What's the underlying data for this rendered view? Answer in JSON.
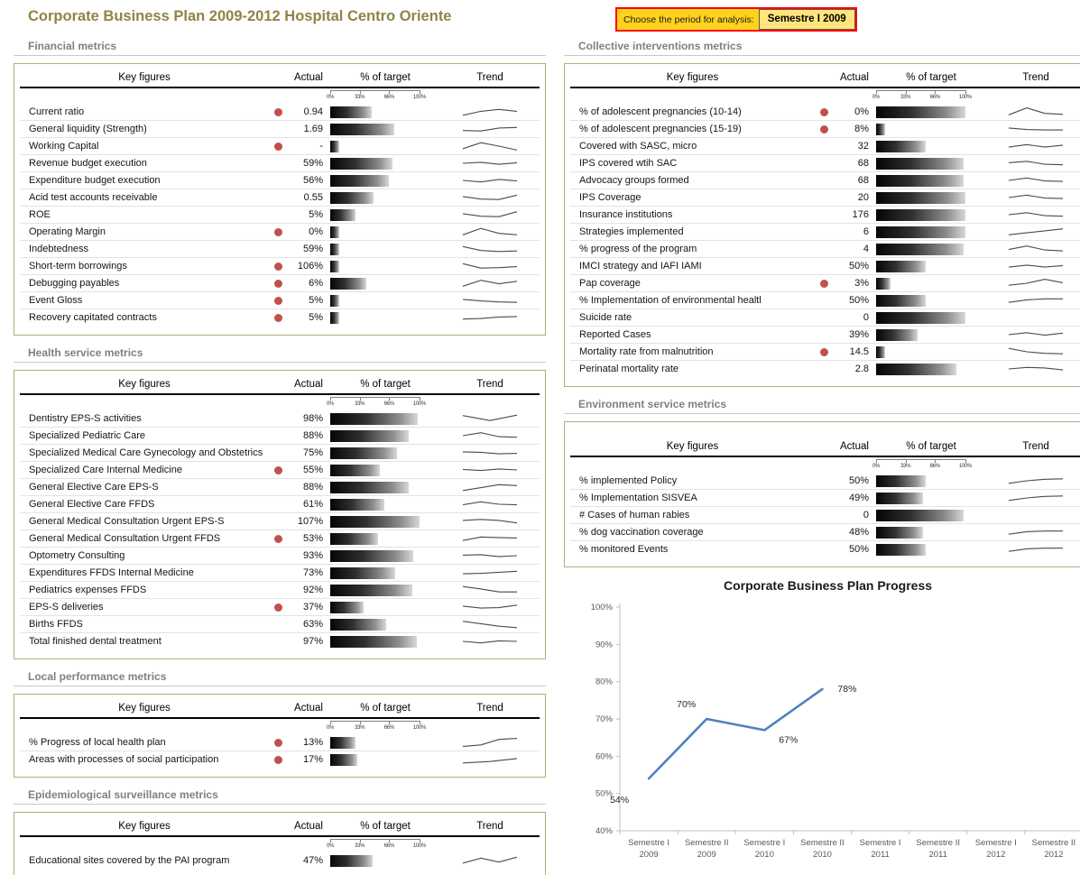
{
  "header": {
    "title": "Corporate Business Plan 2009-2012 Hospital Centro Oriente",
    "period_label": "Choose the period for analysis:",
    "period_value": "Semestre I 2009"
  },
  "table_headers": {
    "key_figures": "Key figures",
    "actual": "Actual",
    "target": "% of target",
    "trend": "Trend"
  },
  "scale_labels": [
    "0%",
    "33%",
    "66%",
    "100%"
  ],
  "colors": {
    "page_title": "#8e8444",
    "section_title": "#808080",
    "panel_border": "#b5ab7a",
    "alert_dot": "#c0504d",
    "chart_line": "#4f81bd",
    "period_box_bg": "#ffd21e",
    "period_box_border": "#ff0000",
    "period_value_bg": "#ffe57c"
  },
  "panels": [
    {
      "id": "financial",
      "column": "left",
      "title": "Financial metrics",
      "rows": [
        {
          "label": "Current ratio",
          "alert": true,
          "actual": "0.94",
          "target_pct": 46,
          "trend": [
            0.15,
            0.55,
            0.75,
            0.55
          ]
        },
        {
          "label": "General liquidity (Strength)",
          "alert": false,
          "actual": "1.69",
          "target_pct": 72,
          "trend": [
            0.35,
            0.3,
            0.6,
            0.65
          ]
        },
        {
          "label": "Working Capital",
          "alert": true,
          "actual": "-",
          "target_pct": 10,
          "trend": [
            0.25,
            0.85,
            0.5,
            0.1
          ]
        },
        {
          "label": "Revenue budget execution",
          "alert": false,
          "actual": "59%",
          "target_pct": 70,
          "trend": [
            0.5,
            0.6,
            0.4,
            0.55
          ]
        },
        {
          "label": "Expenditure budget execution",
          "alert": false,
          "actual": "56%",
          "target_pct": 66,
          "trend": [
            0.5,
            0.35,
            0.6,
            0.45
          ]
        },
        {
          "label": "Acid test accounts receivable",
          "alert": false,
          "actual": "0.55",
          "target_pct": 48,
          "trend": [
            0.6,
            0.35,
            0.3,
            0.75
          ]
        },
        {
          "label": "ROE",
          "alert": false,
          "actual": "5%",
          "target_pct": 28,
          "trend": [
            0.6,
            0.35,
            0.3,
            0.8
          ]
        },
        {
          "label": "Operating Margin",
          "alert": true,
          "actual": "0%",
          "target_pct": 10,
          "trend": [
            0.2,
            0.85,
            0.35,
            0.2
          ]
        },
        {
          "label": "Indebtedness",
          "alert": false,
          "actual": "59%",
          "target_pct": 10,
          "trend": [
            0.75,
            0.35,
            0.25,
            0.3
          ]
        },
        {
          "label": "Short-term borrowings",
          "alert": true,
          "actual": "106%",
          "target_pct": 10,
          "trend": [
            0.75,
            0.3,
            0.35,
            0.45
          ]
        },
        {
          "label": "Debugging payables",
          "alert": true,
          "actual": "6%",
          "target_pct": 40,
          "trend": [
            0.2,
            0.8,
            0.45,
            0.7
          ]
        },
        {
          "label": "Event Gloss",
          "alert": true,
          "actual": "5%",
          "target_pct": 10,
          "trend": [
            0.6,
            0.45,
            0.35,
            0.3
          ]
        },
        {
          "label": "Recovery capitated contracts",
          "alert": true,
          "actual": "5%",
          "target_pct": 10,
          "trend": [
            0.35,
            0.4,
            0.55,
            0.6
          ]
        }
      ]
    },
    {
      "id": "health",
      "column": "left",
      "title": "Health service metrics",
      "rows": [
        {
          "label": "Dentistry EPS-S activities",
          "alert": false,
          "actual": "98%",
          "target_pct": 98,
          "trend": [
            0.8,
            0.3,
            0.85
          ]
        },
        {
          "label": "Specialized Pediatric Care",
          "alert": false,
          "actual": "88%",
          "target_pct": 88,
          "trend": [
            0.5,
            0.8,
            0.4,
            0.35
          ]
        },
        {
          "label": "Specialized Medical Care Gynecology and Obstetrics",
          "alert": false,
          "actual": "75%",
          "target_pct": 75,
          "trend": [
            0.6,
            0.55,
            0.4,
            0.45
          ]
        },
        {
          "label": "Specialized Care Internal Medicine",
          "alert": true,
          "actual": "55%",
          "target_pct": 55,
          "trend": [
            0.55,
            0.45,
            0.6,
            0.5
          ]
        },
        {
          "label": "General Elective Care EPS-S",
          "alert": false,
          "actual": "88%",
          "target_pct": 88,
          "trend": [
            0.15,
            0.45,
            0.75,
            0.65
          ]
        },
        {
          "label": "General Elective Care FFDS",
          "alert": false,
          "actual": "61%",
          "target_pct": 61,
          "trend": [
            0.45,
            0.75,
            0.5,
            0.45
          ]
        },
        {
          "label": "General Medical Consultation Urgent EPS-S",
          "alert": false,
          "actual": "107%",
          "target_pct": 100,
          "trend": [
            0.6,
            0.7,
            0.6,
            0.35
          ]
        },
        {
          "label": "General Medical Consultation Urgent FFDS",
          "alert": true,
          "actual": "53%",
          "target_pct": 53,
          "trend": [
            0.3,
            0.65,
            0.6,
            0.55
          ]
        },
        {
          "label": "Optometry Consulting",
          "alert": false,
          "actual": "93%",
          "target_pct": 93,
          "trend": [
            0.55,
            0.6,
            0.4,
            0.5
          ]
        },
        {
          "label": "Expenditures FFDS Internal Medicine",
          "alert": false,
          "actual": "73%",
          "target_pct": 73,
          "trend": [
            0.4,
            0.45,
            0.55,
            0.65
          ]
        },
        {
          "label": "Pediatrics expenses FFDS",
          "alert": false,
          "actual": "92%",
          "target_pct": 92,
          "trend": [
            0.85,
            0.6,
            0.3,
            0.3
          ]
        },
        {
          "label": "EPS-S deliveries",
          "alert": true,
          "actual": "37%",
          "target_pct": 37,
          "trend": [
            0.6,
            0.4,
            0.45,
            0.7
          ]
        },
        {
          "label": "Births FFDS",
          "alert": false,
          "actual": "63%",
          "target_pct": 63,
          "trend": [
            0.8,
            0.55,
            0.3,
            0.15
          ]
        },
        {
          "label": "Total finished dental treatment",
          "alert": false,
          "actual": "97%",
          "target_pct": 97,
          "trend": [
            0.5,
            0.35,
            0.55,
            0.5
          ]
        }
      ]
    },
    {
      "id": "local",
      "column": "left",
      "title": "Local performance metrics",
      "rows": [
        {
          "label": "% Progress of local health plan",
          "alert": true,
          "actual": "13%",
          "target_pct": 28,
          "trend": [
            0.1,
            0.25,
            0.8,
            0.9
          ]
        },
        {
          "label": "Areas with processes of social participation",
          "alert": true,
          "actual": "17%",
          "target_pct": 30,
          "trend": [
            0.15,
            0.3,
            0.6
          ]
        }
      ]
    },
    {
      "id": "epidemiological",
      "column": "left",
      "title": "Epidemiological surveillance metrics",
      "rows": [
        {
          "label": "Educational sites covered by the PAI program",
          "alert": false,
          "actual": "47%",
          "target_pct": 47,
          "trend": [
            0.25,
            0.75,
            0.35,
            0.85
          ]
        }
      ]
    },
    {
      "id": "collective",
      "column": "right",
      "title": "Collective interventions metrics",
      "rows": [
        {
          "label": "% of adolescent pregnancies (10-14)",
          "alert": true,
          "actual": "0%",
          "target_pct": 100,
          "trend": [
            0.2,
            0.9,
            0.35,
            0.25
          ]
        },
        {
          "label": "% of adolescent pregnancies (15-19)",
          "alert": true,
          "actual": "8%",
          "target_pct": 10,
          "trend": [
            0.6,
            0.45,
            0.4,
            0.4
          ]
        },
        {
          "label": "Covered with SASC, micro",
          "alert": false,
          "actual": "32",
          "target_pct": 56,
          "trend": [
            0.4,
            0.65,
            0.4,
            0.6
          ]
        },
        {
          "label": "IPS covered wtih SAC",
          "alert": false,
          "actual": "68",
          "target_pct": 98,
          "trend": [
            0.55,
            0.7,
            0.4,
            0.35
          ]
        },
        {
          "label": "Advocacy groups formed",
          "alert": false,
          "actual": "68",
          "target_pct": 98,
          "trend": [
            0.5,
            0.75,
            0.45,
            0.4
          ]
        },
        {
          "label": "IPS Coverage",
          "alert": false,
          "actual": "20",
          "target_pct": 100,
          "trend": [
            0.5,
            0.75,
            0.45,
            0.4
          ]
        },
        {
          "label": "Insurance institutions",
          "alert": false,
          "actual": "176",
          "target_pct": 100,
          "trend": [
            0.5,
            0.7,
            0.4,
            0.35
          ]
        },
        {
          "label": "Strategies implemented",
          "alert": false,
          "actual": "6",
          "target_pct": 100,
          "trend": [
            0.2,
            0.4,
            0.6,
            0.8
          ]
        },
        {
          "label": "% progress of the program",
          "alert": false,
          "actual": "4",
          "target_pct": 98,
          "trend": [
            0.45,
            0.8,
            0.4,
            0.3
          ]
        },
        {
          "label": "IMCI strategy and IAFI IAMI",
          "alert": false,
          "actual": "50%",
          "target_pct": 56,
          "trend": [
            0.4,
            0.6,
            0.4,
            0.55
          ]
        },
        {
          "label": "Pap coverage",
          "alert": true,
          "actual": "3%",
          "target_pct": 16,
          "trend": [
            0.3,
            0.5,
            0.9,
            0.55
          ]
        },
        {
          "label": "% Implementation of environmental healtl",
          "alert": false,
          "actual": "50%",
          "target_pct": 56,
          "trend": [
            0.3,
            0.55,
            0.65,
            0.65
          ]
        },
        {
          "label": "Suicide rate",
          "alert": false,
          "actual": "0",
          "target_pct": 100,
          "trend": null
        },
        {
          "label": "Reported Cases",
          "alert": false,
          "actual": "39%",
          "target_pct": 46,
          "trend": [
            0.5,
            0.7,
            0.45,
            0.65
          ]
        },
        {
          "label": "Mortality rate from malnutrition",
          "alert": true,
          "actual": "14.5",
          "target_pct": 10,
          "trend": [
            0.85,
            0.5,
            0.35,
            0.3
          ]
        },
        {
          "label": "Perinatal mortality rate",
          "alert": false,
          "actual": "2.8",
          "target_pct": 90,
          "trend": [
            0.5,
            0.65,
            0.6,
            0.4
          ]
        }
      ]
    },
    {
      "id": "environment",
      "column": "right",
      "title": "Environment service metrics",
      "rows": [
        {
          "label": "% implemented Policy",
          "alert": false,
          "actual": "50%",
          "target_pct": 55,
          "trend": [
            0.25,
            0.5,
            0.65,
            0.7
          ]
        },
        {
          "label": "% Implementation SISVEA",
          "alert": false,
          "actual": "49%",
          "target_pct": 52,
          "trend": [
            0.25,
            0.5,
            0.65,
            0.7
          ]
        },
        {
          "label": "# Cases of human rabies",
          "alert": false,
          "actual": "0",
          "target_pct": 98,
          "trend": null
        },
        {
          "label": "% dog vaccination coverage",
          "alert": false,
          "actual": "48%",
          "target_pct": 52,
          "trend": [
            0.3,
            0.55,
            0.62,
            0.62
          ]
        },
        {
          "label": "% monitored Events",
          "alert": false,
          "actual": "50%",
          "target_pct": 55,
          "trend": [
            0.3,
            0.55,
            0.62,
            0.62
          ]
        }
      ]
    }
  ],
  "chart_data": {
    "type": "line",
    "title": "Corporate Business Plan Progress",
    "categories": [
      {
        "line1": "Semestre I",
        "line2": "2009"
      },
      {
        "line1": "Semestre II",
        "line2": "2009"
      },
      {
        "line1": "Semestre I",
        "line2": "2010"
      },
      {
        "line1": "Semestre II",
        "line2": "2010"
      },
      {
        "line1": "Semestre I",
        "line2": "2011"
      },
      {
        "line1": "Semestre II",
        "line2": "2011"
      },
      {
        "line1": "Semestre I",
        "line2": "2012"
      },
      {
        "line1": "Semestre II",
        "line2": "2012"
      }
    ],
    "values": [
      54,
      70,
      67,
      78,
      null,
      null,
      null,
      null
    ],
    "data_labels": [
      "54%",
      "70%",
      "67%",
      "78%"
    ],
    "ylim": [
      40,
      100
    ],
    "ytick_step": 10,
    "ytick_labels": [
      "40%",
      "50%",
      "60%",
      "70%",
      "80%",
      "90%",
      "100%"
    ],
    "line_color": "#4f81bd",
    "grid": false,
    "legend": "none"
  }
}
